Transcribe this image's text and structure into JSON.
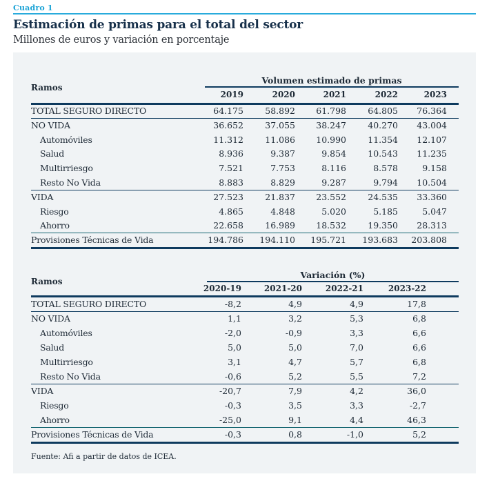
{
  "header": {
    "label": "Cuadro 1",
    "title": "Estimación de primas para el total del sector",
    "subtitle": "Millones de euros y variación en porcentaje"
  },
  "colors": {
    "accent": "#29abdc",
    "title": "#17304a",
    "rule": "#0e3a5e",
    "rule_teal": "#136470",
    "panel_bg": "#f0f3f5"
  },
  "table_volume": {
    "row_header": "Ramos",
    "group_title": "Volumen estimado de primas",
    "columns": [
      "2019",
      "2020",
      "2021",
      "2022",
      "2023"
    ],
    "rows": [
      {
        "label": "TOTAL SEGURO DIRECTO",
        "indent": false,
        "values": [
          "64.175",
          "58.892",
          "61.798",
          "64.805",
          "76.364"
        ]
      },
      {
        "label": "NO VIDA",
        "indent": false,
        "values": [
          "36.652",
          "37.055",
          "38.247",
          "40.270",
          "43.004"
        ]
      },
      {
        "label": "Automóviles",
        "indent": true,
        "values": [
          "11.312",
          "11.086",
          "10.990",
          "11.354",
          "12.107"
        ]
      },
      {
        "label": "Salud",
        "indent": true,
        "values": [
          "8.936",
          "9.387",
          "9.854",
          "10.543",
          "11.235"
        ]
      },
      {
        "label": "Multirriesgo",
        "indent": true,
        "values": [
          "7.521",
          "7.753",
          "8.116",
          "8.578",
          "9.158"
        ]
      },
      {
        "label": "Resto No Vida",
        "indent": true,
        "values": [
          "8.883",
          "8.829",
          "9.287",
          "9.794",
          "10.504"
        ]
      },
      {
        "label": "VIDA",
        "indent": false,
        "values": [
          "27.523",
          "21.837",
          "23.552",
          "24.535",
          "33.360"
        ]
      },
      {
        "label": "Riesgo",
        "indent": true,
        "values": [
          "4.865",
          "4.848",
          "5.020",
          "5.185",
          "5.047"
        ]
      },
      {
        "label": "Ahorro",
        "indent": true,
        "values": [
          "22.658",
          "16.989",
          "18.532",
          "19.350",
          "28.313"
        ]
      },
      {
        "label": "Provisiones Técnicas de Vida",
        "indent": false,
        "values": [
          "194.786",
          "194.110",
          "195.721",
          "193.683",
          "203.808"
        ]
      }
    ]
  },
  "table_variation": {
    "row_header": "Ramos",
    "group_title": "Variación (%)",
    "columns": [
      "2020-19",
      "2021-20",
      "2022-21",
      "2023-22"
    ],
    "rows": [
      {
        "label": "TOTAL SEGURO DIRECTO",
        "indent": false,
        "values": [
          "-8,2",
          "4,9",
          "4,9",
          "17,8"
        ]
      },
      {
        "label": "NO VIDA",
        "indent": false,
        "values": [
          "1,1",
          "3,2",
          "5,3",
          "6,8"
        ]
      },
      {
        "label": "Automóviles",
        "indent": true,
        "values": [
          "-2,0",
          "-0,9",
          "3,3",
          "6,6"
        ]
      },
      {
        "label": "Salud",
        "indent": true,
        "values": [
          "5,0",
          "5,0",
          "7,0",
          "6,6"
        ]
      },
      {
        "label": "Multirriesgo",
        "indent": true,
        "values": [
          "3,1",
          "4,7",
          "5,7",
          "6,8"
        ]
      },
      {
        "label": "Resto No Vida",
        "indent": true,
        "values": [
          "-0,6",
          "5,2",
          "5,5",
          "7,2"
        ]
      },
      {
        "label": "VIDA",
        "indent": false,
        "values": [
          "-20,7",
          "7,9",
          "4,2",
          "36,0"
        ]
      },
      {
        "label": "Riesgo",
        "indent": true,
        "values": [
          "-0,3",
          "3,5",
          "3,3",
          "-2,7"
        ]
      },
      {
        "label": "Ahorro",
        "indent": true,
        "values": [
          "-25,0",
          "9,1",
          "4,4",
          "46,3"
        ]
      },
      {
        "label": "Provisiones Técnicas de Vida",
        "indent": false,
        "values": [
          "-0,3",
          "0,8",
          "-1,0",
          "5,2"
        ]
      }
    ]
  },
  "source": "Fuente: Afi a partir de datos de ICEA."
}
